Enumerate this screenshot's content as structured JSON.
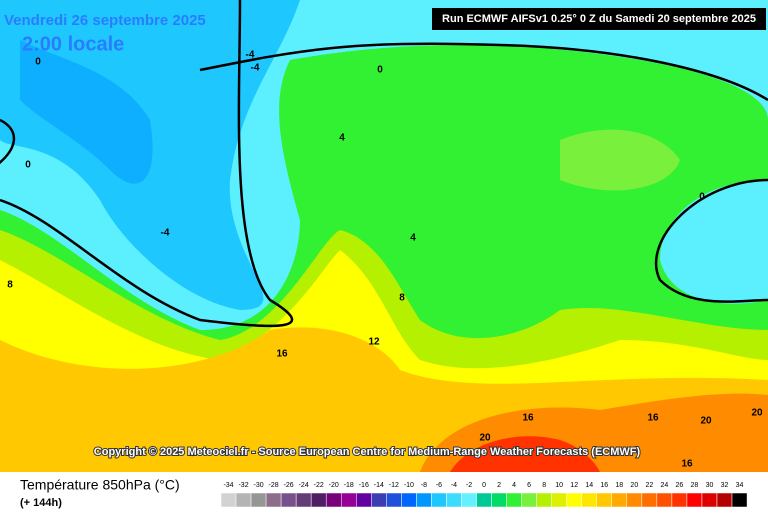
{
  "header": {
    "date": "Vendredi 26 septembre 2025",
    "time": "2:00 locale",
    "run": "Run ECMWF AIFSv1 0.25° 0 Z du Samedi 20 septembre 2025"
  },
  "map": {
    "copyright": "Copyright © 2025 Meteociel.fr - Source European Centre for Medium-Range Weather Forecasts (ECMWF)",
    "contour_labels": [
      "0",
      "-4",
      "-4",
      "0",
      "0",
      "4",
      "-4",
      "4",
      "0",
      "8",
      "8",
      "12",
      "16",
      "16",
      "20",
      "16",
      "20",
      "20",
      "16"
    ]
  },
  "legend": {
    "title": "Température 850hPa (°C)",
    "lead": "(+ 144h)",
    "ticks": [
      -34,
      -32,
      -30,
      -28,
      -26,
      -24,
      -22,
      -20,
      -18,
      -16,
      -14,
      -12,
      -10,
      -8,
      -6,
      -4,
      -2,
      0,
      2,
      4,
      6,
      8,
      10,
      12,
      14,
      16,
      18,
      20,
      22,
      24,
      26,
      28,
      30,
      32,
      34
    ],
    "colors": [
      "#d2d2d2",
      "#b4b4b4",
      "#969696",
      "#8c6e8c",
      "#78508c",
      "#643c78",
      "#501e64",
      "#780078",
      "#960096",
      "#6400a0",
      "#3c3cb4",
      "#1e50dc",
      "#0064ff",
      "#0096ff",
      "#1ec8ff",
      "#3cdcff",
      "#64f0ff",
      "#00c896",
      "#00dc64",
      "#32f032",
      "#78f03c",
      "#b4f000",
      "#dcf000",
      "#ffff00",
      "#ffe600",
      "#ffc800",
      "#ffaa00",
      "#ff8c00",
      "#ff6e00",
      "#ff5000",
      "#ff3200",
      "#ff0000",
      "#dc0000",
      "#b40000",
      "#000000"
    ]
  }
}
